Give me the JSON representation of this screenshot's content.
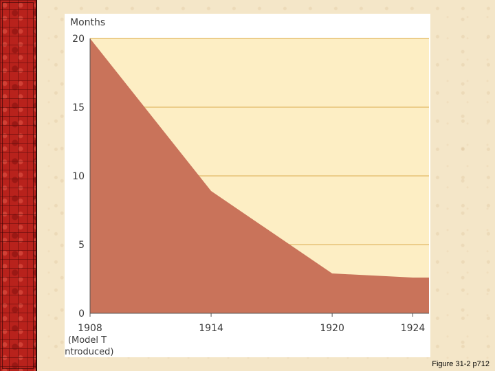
{
  "chart_data": {
    "type": "area",
    "ylabel": "Months",
    "x": [
      1908,
      1914,
      1920,
      1924
    ],
    "values": [
      20,
      8.9,
      2.9,
      2.6
    ],
    "xlim": [
      1908,
      1924.8
    ],
    "ylim": [
      0,
      20
    ],
    "xticks": [
      "1908",
      "1914",
      "1920",
      "1924"
    ],
    "yticks": [
      "0",
      "5",
      "10",
      "15",
      "20"
    ],
    "annotations": [
      "(Model T",
      "introduced)"
    ],
    "grid": "horizontal",
    "colors": {
      "area": "#c9735a",
      "plot_background": "#fdeec4",
      "gridline": "#eccd8a",
      "axis": "#555555"
    }
  },
  "caption": "Figure 31-2 p712"
}
